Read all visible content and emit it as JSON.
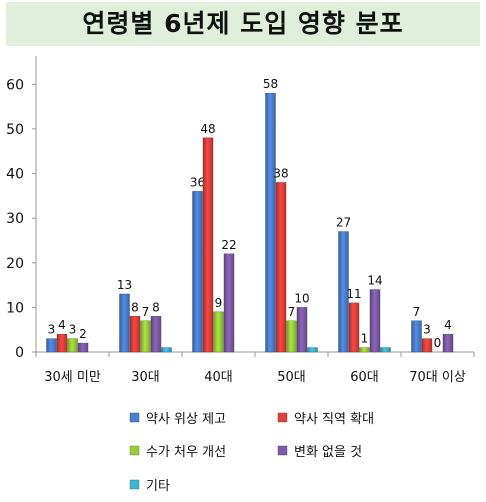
{
  "title": "연령별 6년제 도입 영향 분포",
  "chart_data": {
    "type": "bar",
    "categories": [
      "30세 미만",
      "30대",
      "40대",
      "50대",
      "60대",
      "70대 이상"
    ],
    "series": [
      {
        "name": "약사 위상 제고",
        "color": "#4a7fd0",
        "values": [
          3,
          13,
          36,
          58,
          27,
          7
        ],
        "labels": [
          "3",
          "13",
          "36",
          "58",
          "27",
          "7"
        ]
      },
      {
        "name": "약사 직역 확대",
        "color": "#e0403c",
        "values": [
          4,
          8,
          48,
          38,
          11,
          3
        ],
        "labels": [
          "4",
          "8",
          "48",
          "38",
          "11",
          "3"
        ]
      },
      {
        "name": "수가 처우 개선",
        "color": "#9acd3c",
        "values": [
          3,
          7,
          9,
          7,
          1,
          0
        ],
        "labels": [
          "3",
          "7",
          "9",
          "7",
          "1",
          "0"
        ]
      },
      {
        "name": "변화 없을 것",
        "color": "#7e5ba8",
        "values": [
          2,
          8,
          22,
          10,
          14,
          4
        ],
        "labels": [
          "2",
          "8",
          "22",
          "10",
          "14",
          "4"
        ]
      },
      {
        "name": "기타",
        "color": "#3cb4d4",
        "values": [
          0,
          1,
          0,
          1,
          1,
          0
        ],
        "labels": [
          "",
          "",
          "",
          "",
          "",
          ""
        ]
      }
    ],
    "ylim": [
      0,
      65
    ],
    "yticks": [
      0,
      10,
      20,
      30,
      40,
      50,
      60
    ],
    "grid": false,
    "legend_position": "bottom"
  }
}
